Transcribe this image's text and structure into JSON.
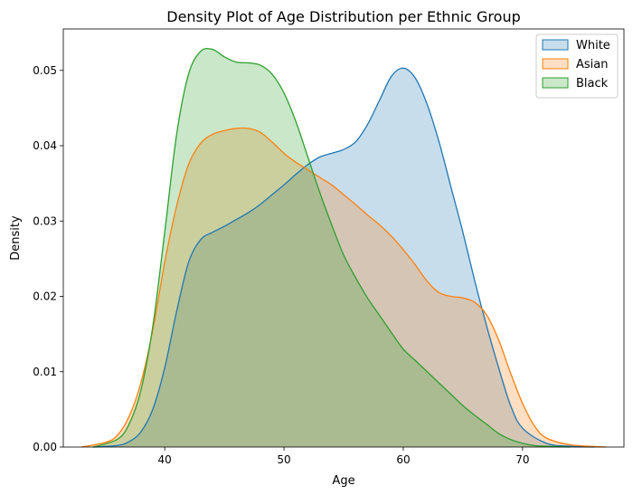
{
  "chart_data": {
    "type": "area",
    "title": "Density Plot of Age Distribution per Ethnic Group",
    "xlabel": "Age",
    "ylabel": "Density",
    "xlim": [
      31.5,
      78.5
    ],
    "ylim": [
      0,
      0.0555
    ],
    "xticks": [
      40,
      50,
      60,
      70
    ],
    "yticks": [
      0.0,
      0.01,
      0.02,
      0.03,
      0.04,
      0.05
    ],
    "ytick_labels": [
      "0.00",
      "0.01",
      "0.02",
      "0.03",
      "0.04",
      "0.05"
    ],
    "legend": "top-right",
    "grid": false,
    "series": [
      {
        "name": "White",
        "color": "#1f77b4",
        "x": [
          34,
          36,
          37,
          38,
          39,
          40,
          41,
          42,
          43,
          44,
          45,
          46,
          47,
          48,
          49,
          50,
          51,
          52,
          53,
          54,
          55,
          56,
          57,
          58,
          59,
          60,
          61,
          62,
          63,
          64,
          65,
          66,
          67,
          68,
          69,
          70,
          72,
          74,
          76
        ],
        "y": [
          0.0,
          0.0002,
          0.0007,
          0.002,
          0.005,
          0.0105,
          0.018,
          0.0245,
          0.0275,
          0.0285,
          0.0293,
          0.0302,
          0.0311,
          0.0322,
          0.0335,
          0.0348,
          0.0362,
          0.0375,
          0.0385,
          0.039,
          0.0395,
          0.0405,
          0.0428,
          0.046,
          0.0492,
          0.0503,
          0.049,
          0.0455,
          0.0405,
          0.0345,
          0.0285,
          0.022,
          0.016,
          0.0105,
          0.0055,
          0.0025,
          0.0005,
          0.0001,
          0.0
        ]
      },
      {
        "name": "Asian",
        "color": "#ff7f0e",
        "x": [
          33,
          35,
          36,
          37,
          38,
          39,
          40,
          41,
          42,
          43,
          44,
          45,
          46,
          47,
          48,
          49,
          50,
          51,
          52,
          53,
          54,
          55,
          56,
          57,
          58,
          59,
          60,
          61,
          62,
          63,
          64,
          65,
          66,
          67,
          68,
          69,
          70,
          71,
          72,
          74,
          77
        ],
        "y": [
          0.0,
          0.0006,
          0.0015,
          0.004,
          0.0085,
          0.0155,
          0.0245,
          0.032,
          0.0375,
          0.0403,
          0.0415,
          0.042,
          0.0423,
          0.0423,
          0.0418,
          0.0405,
          0.039,
          0.0378,
          0.0368,
          0.0358,
          0.0348,
          0.0335,
          0.0322,
          0.0308,
          0.0295,
          0.028,
          0.0262,
          0.0242,
          0.022,
          0.0205,
          0.02,
          0.0198,
          0.0192,
          0.0175,
          0.0142,
          0.0098,
          0.0058,
          0.0028,
          0.0012,
          0.0003,
          0.0
        ]
      },
      {
        "name": "Black",
        "color": "#2ca02c",
        "x": [
          34,
          36,
          37,
          38,
          39,
          40,
          41,
          42,
          43,
          44,
          45,
          46,
          47,
          48,
          49,
          50,
          51,
          52,
          53,
          54,
          55,
          56,
          57,
          58,
          59,
          60,
          61,
          62,
          63,
          64,
          65,
          66,
          67,
          68,
          69,
          70,
          71,
          72,
          74
        ],
        "y": [
          0.0,
          0.001,
          0.003,
          0.0075,
          0.016,
          0.0285,
          0.0415,
          0.0495,
          0.0525,
          0.0528,
          0.0518,
          0.0511,
          0.051,
          0.0507,
          0.0495,
          0.047,
          0.0432,
          0.0385,
          0.0338,
          0.0295,
          0.0255,
          0.0225,
          0.0198,
          0.0175,
          0.0152,
          0.013,
          0.0115,
          0.01,
          0.0085,
          0.007,
          0.0055,
          0.0042,
          0.003,
          0.0018,
          0.001,
          0.0005,
          0.0002,
          0.0001,
          0.0
        ]
      }
    ]
  }
}
